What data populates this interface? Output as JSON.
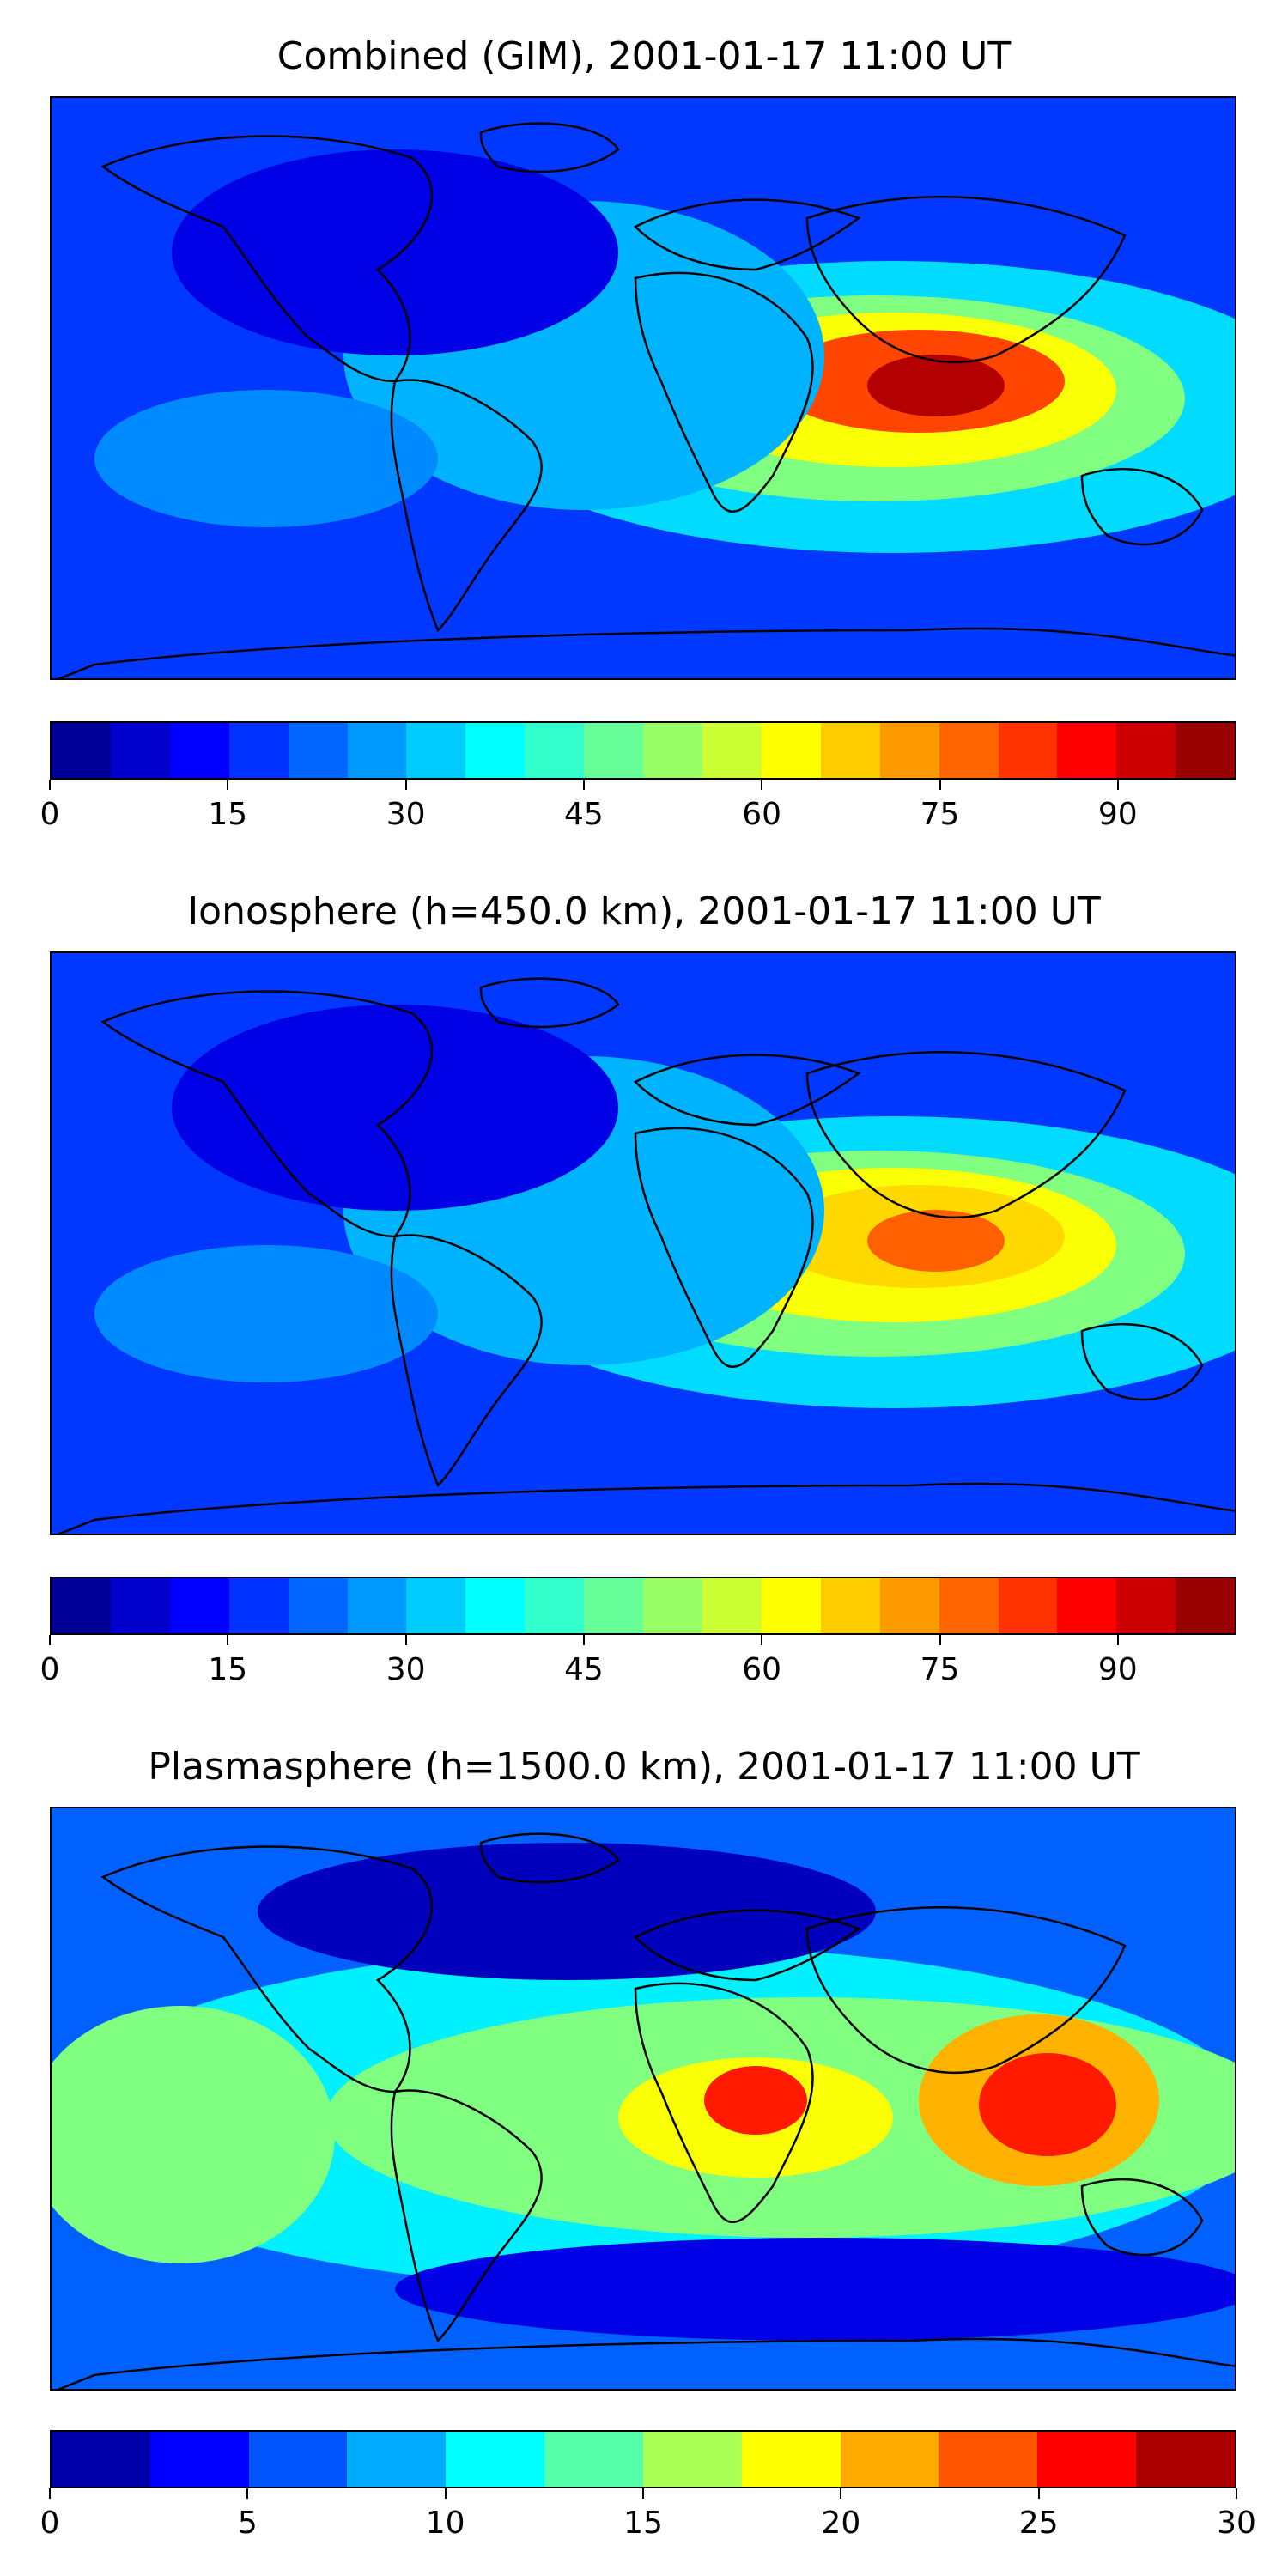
{
  "panels": [
    {
      "title": "Combined (GIM), 2001-01-17 11:00 UT",
      "colorbar": {
        "min": 0,
        "max": 100,
        "levels": 20,
        "tick_labels": [
          "0",
          "15",
          "30",
          "45",
          "60",
          "75",
          "90"
        ],
        "tick_values": [
          0,
          15,
          30,
          45,
          60,
          75,
          90
        ]
      },
      "peak_level": 0.95
    },
    {
      "title": "Ionosphere  (h=450.0 km), 2001-01-17 11:00 UT",
      "colorbar": {
        "min": 0,
        "max": 100,
        "levels": 20,
        "tick_labels": [
          "0",
          "15",
          "30",
          "45",
          "60",
          "75",
          "90"
        ],
        "tick_values": [
          0,
          15,
          30,
          45,
          60,
          75,
          90
        ]
      },
      "peak_level": 0.78
    },
    {
      "title": "Plasmasphere (h=1500.0 km), 2001-01-17 11:00 UT",
      "colorbar": {
        "min": 0,
        "max": 30,
        "levels": 12,
        "tick_labels": [
          "0",
          "5",
          "10",
          "15",
          "20",
          "25",
          "30"
        ],
        "tick_values": [
          0,
          5,
          10,
          15,
          20,
          25,
          30
        ]
      },
      "peak_level": 0.9
    }
  ],
  "colormap": "jet"
}
